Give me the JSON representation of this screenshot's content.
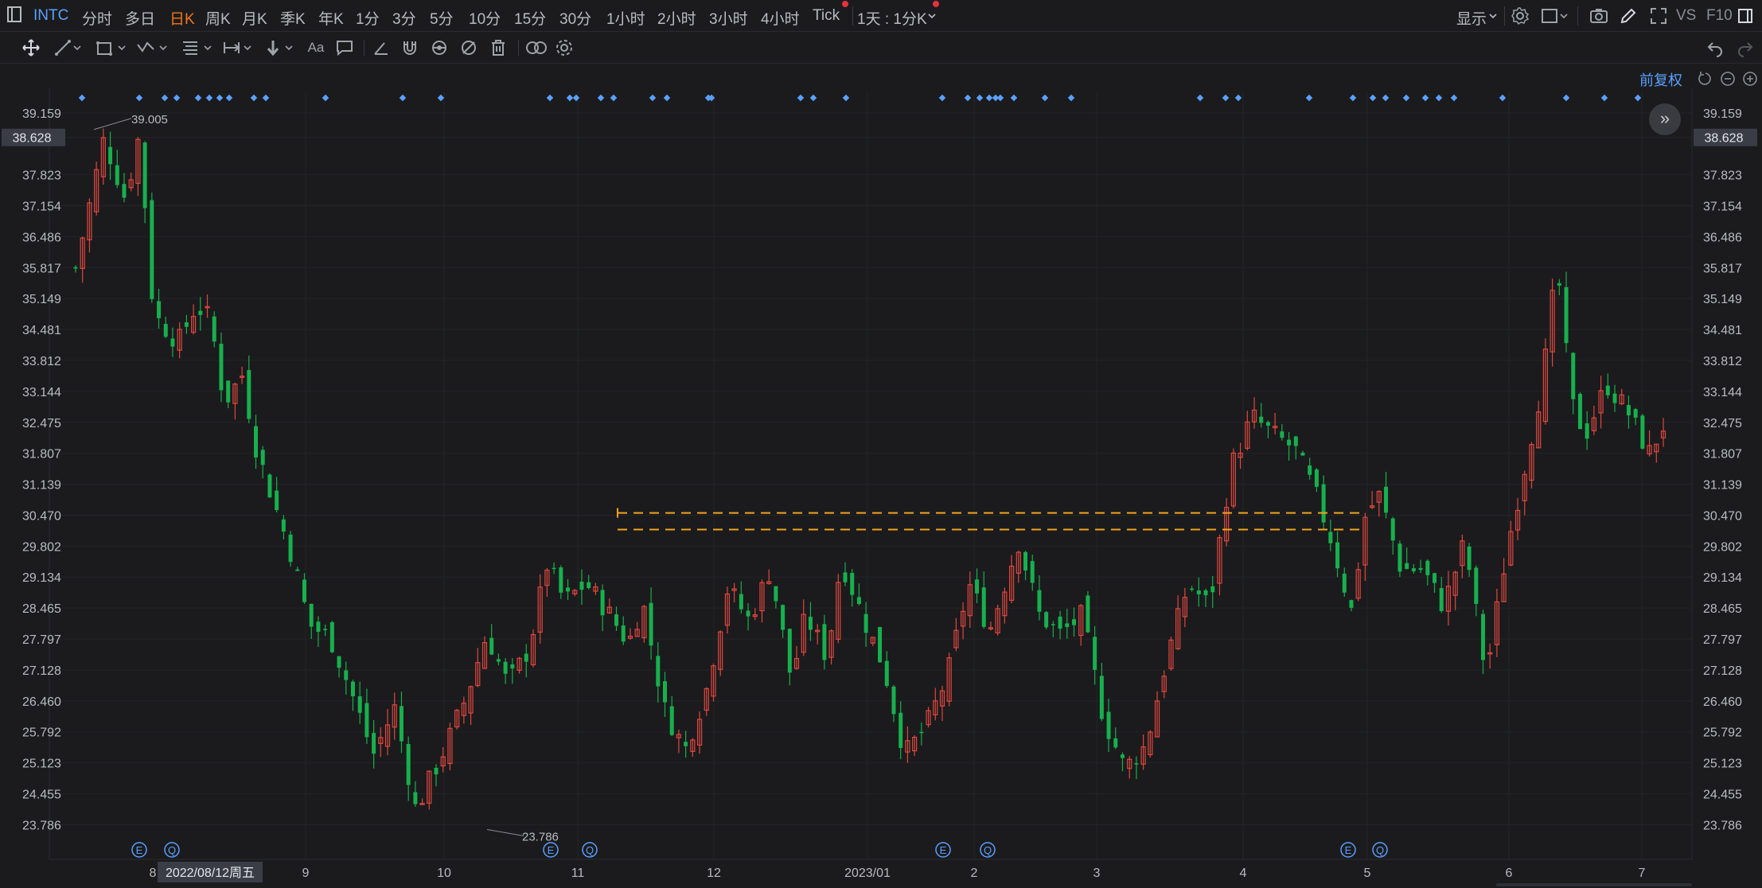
{
  "topbar": {
    "symbol": "INTC",
    "intervals": [
      "分时",
      "多日",
      "日K",
      "周K",
      "月K",
      "季K",
      "年K",
      "1分",
      "3分",
      "5分",
      "10分",
      "15分",
      "30分",
      "1小时",
      "2小时",
      "3小时",
      "4小时",
      "Tick"
    ],
    "active_interval": "日K",
    "combo": "1天 : 1分K",
    "display": "显示",
    "vs": "VS",
    "f10": "F10"
  },
  "toolbar": {
    "text_tool": "Aa"
  },
  "chart_controls": {
    "adjust_label": "前复权",
    "expand_label": "»"
  },
  "colors": {
    "up": "#e0473f",
    "down": "#17b04d",
    "background": "#1b1b1d",
    "grid": "#26272b",
    "accent": "#f3761a",
    "event": "#5aa0ff"
  },
  "chart_data": {
    "type": "candlestick",
    "symbol": "INTC",
    "ylim": [
      23.45,
      39.62
    ],
    "y_ticks": [
      39.159,
      38.628,
      37.823,
      37.154,
      36.486,
      35.817,
      35.149,
      34.481,
      33.812,
      33.144,
      32.475,
      31.807,
      31.139,
      30.47,
      29.802,
      29.134,
      28.465,
      27.797,
      27.128,
      26.46,
      25.792,
      25.123,
      24.455,
      23.786
    ],
    "current_price": "38.628",
    "x_labels": [
      "9",
      "10",
      "11",
      "12",
      "2023/01",
      "2",
      "3",
      "4",
      "5",
      "6",
      "7"
    ],
    "crosshair_date": "2022/08/12周五",
    "max_label": "39.005",
    "min_label": "23.786",
    "event_markers": [
      "E",
      "Q",
      "E",
      "Q",
      "E",
      "Q",
      "E",
      "Q"
    ],
    "resistance_levels": [
      30.52,
      30.16
    ],
    "close_path": [
      [
        0,
        35.8
      ],
      [
        8,
        38.6
      ],
      [
        14,
        37.3
      ],
      [
        18,
        38.7
      ],
      [
        22,
        34.8
      ],
      [
        29,
        34.2
      ],
      [
        34,
        35.0
      ],
      [
        38,
        34.7
      ],
      [
        42,
        32.9
      ],
      [
        47,
        33.5
      ],
      [
        51,
        31.9
      ],
      [
        57,
        30.5
      ],
      [
        61,
        29.6
      ],
      [
        66,
        28.1
      ],
      [
        72,
        27.8
      ],
      [
        78,
        26.6
      ],
      [
        84,
        25.3
      ],
      [
        90,
        26.3
      ],
      [
        96,
        24.1
      ],
      [
        104,
        25.4
      ],
      [
        110,
        26.5
      ],
      [
        116,
        27.9
      ],
      [
        122,
        26.8
      ],
      [
        128,
        27.6
      ],
      [
        133,
        29.4
      ],
      [
        138,
        28.6
      ],
      [
        144,
        29.0
      ],
      [
        150,
        28.4
      ],
      [
        156,
        27.7
      ],
      [
        160,
        28.6
      ],
      [
        166,
        26.3
      ],
      [
        172,
        25.4
      ],
      [
        178,
        26.7
      ],
      [
        184,
        28.9
      ],
      [
        190,
        28.2
      ],
      [
        196,
        29.3
      ],
      [
        202,
        26.9
      ],
      [
        206,
        28.3
      ],
      [
        212,
        27.4
      ],
      [
        216,
        29.5
      ],
      [
        222,
        28.3
      ],
      [
        228,
        27.2
      ],
      [
        234,
        25.3
      ],
      [
        240,
        25.9
      ],
      [
        246,
        27.0
      ],
      [
        252,
        29.0
      ],
      [
        258,
        28.0
      ],
      [
        266,
        29.9
      ],
      [
        272,
        28.3
      ],
      [
        278,
        27.9
      ],
      [
        284,
        28.3
      ],
      [
        290,
        26.1
      ],
      [
        296,
        25.0
      ],
      [
        302,
        25.5
      ],
      [
        308,
        27.4
      ],
      [
        314,
        29.0
      ],
      [
        320,
        28.5
      ],
      [
        326,
        31.5
      ],
      [
        332,
        32.6
      ],
      [
        338,
        32.2
      ],
      [
        344,
        31.9
      ],
      [
        350,
        30.9
      ],
      [
        354,
        30.0
      ],
      [
        360,
        28.4
      ],
      [
        364,
        30.5
      ],
      [
        368,
        30.9
      ],
      [
        374,
        29.3
      ],
      [
        380,
        29.3
      ],
      [
        386,
        28.5
      ],
      [
        392,
        29.9
      ],
      [
        398,
        27.0
      ],
      [
        404,
        29.8
      ],
      [
        410,
        31.9
      ],
      [
        414,
        33.4
      ],
      [
        418,
        35.9
      ],
      [
        422,
        32.9
      ],
      [
        426,
        32.2
      ],
      [
        432,
        33.3
      ],
      [
        438,
        32.7
      ],
      [
        444,
        31.8
      ],
      [
        448,
        32.4
      ]
    ],
    "candle_count": 230
  }
}
